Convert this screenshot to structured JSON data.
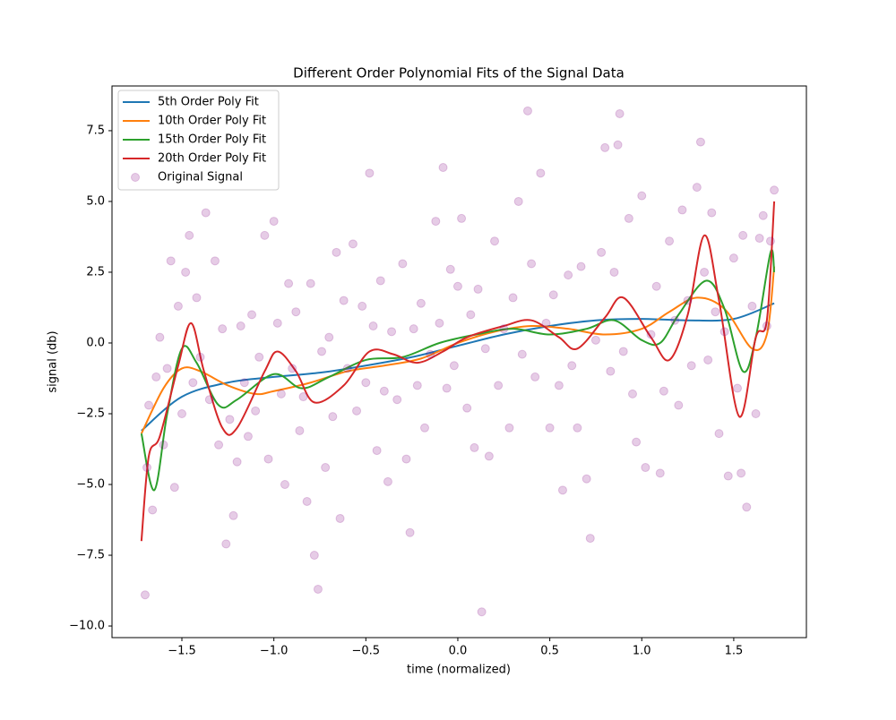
{
  "chart_data": {
    "type": "line",
    "title": "Different Order Polynomial Fits of the Signal Data",
    "xlabel": "time (normalized)",
    "ylabel": "signal (db)",
    "xlim": [
      -1.88,
      1.895
    ],
    "ylim": [
      -10.41,
      9.08
    ],
    "xticks": [
      {
        "value": -1.5,
        "label": "−1.5"
      },
      {
        "value": -1.0,
        "label": "−1.0"
      },
      {
        "value": -0.5,
        "label": "−0.5"
      },
      {
        "value": 0.0,
        "label": "0.0"
      },
      {
        "value": 0.5,
        "label": "0.5"
      },
      {
        "value": 1.0,
        "label": "1.0"
      },
      {
        "value": 1.5,
        "label": "1.5"
      }
    ],
    "yticks": [
      {
        "value": -10.0,
        "label": "−10.0"
      },
      {
        "value": -7.5,
        "label": "−7.5"
      },
      {
        "value": -5.0,
        "label": "−5.0"
      },
      {
        "value": -2.5,
        "label": "−2.5"
      },
      {
        "value": 0.0,
        "label": "0.0"
      },
      2.5,
      {
        "value": 5.0,
        "label": "5.0"
      },
      7.5
    ],
    "legend": "upper left",
    "series": [
      {
        "name": "5th Order Poly Fit",
        "type": "line",
        "color": "#1f77b4",
        "x": [
          -1.72,
          -1.5,
          -1.25,
          -1.0,
          -0.75,
          -0.5,
          -0.25,
          0.0,
          0.25,
          0.5,
          0.75,
          1.0,
          1.25,
          1.5,
          1.72
        ],
        "values": [
          -3.1,
          -1.9,
          -1.4,
          -1.2,
          -1.05,
          -0.8,
          -0.5,
          -0.1,
          0.3,
          0.6,
          0.8,
          0.85,
          0.8,
          0.85,
          1.4
        ]
      },
      {
        "name": "10th Order Poly Fit",
        "type": "line",
        "color": "#ff7f0e",
        "x": [
          -1.72,
          -1.6,
          -1.5,
          -1.4,
          -1.25,
          -1.1,
          -1.0,
          -0.8,
          -0.6,
          -0.4,
          -0.2,
          0.0,
          0.2,
          0.4,
          0.6,
          0.8,
          1.0,
          1.15,
          1.3,
          1.45,
          1.6,
          1.68,
          1.72
        ],
        "values": [
          -3.2,
          -1.6,
          -0.9,
          -1.0,
          -1.5,
          -1.8,
          -1.7,
          -1.4,
          -1.0,
          -0.8,
          -0.55,
          0.0,
          0.4,
          0.6,
          0.5,
          0.3,
          0.5,
          1.1,
          1.6,
          1.2,
          -0.2,
          0.3,
          2.7
        ]
      },
      {
        "name": "15th Order Poly Fit",
        "type": "line",
        "color": "#2ca02c",
        "x": [
          -1.72,
          -1.65,
          -1.58,
          -1.5,
          -1.42,
          -1.3,
          -1.2,
          -1.0,
          -0.85,
          -0.7,
          -0.5,
          -0.3,
          -0.1,
          0.1,
          0.3,
          0.5,
          0.7,
          0.85,
          1.0,
          1.1,
          1.2,
          1.35,
          1.45,
          1.55,
          1.62,
          1.7,
          1.72
        ],
        "values": [
          -3.2,
          -5.2,
          -2.5,
          -0.2,
          -0.7,
          -2.2,
          -2.0,
          -1.1,
          -1.6,
          -1.2,
          -0.6,
          -0.5,
          0.0,
          0.3,
          0.5,
          0.3,
          0.5,
          0.8,
          0.1,
          0.0,
          1.0,
          2.2,
          1.2,
          -1.0,
          0.2,
          3.2,
          2.5
        ]
      },
      {
        "name": "20th Order Poly Fit",
        "type": "line",
        "color": "#d62728",
        "x": [
          -1.72,
          -1.68,
          -1.62,
          -1.52,
          -1.45,
          -1.38,
          -1.28,
          -1.2,
          -1.05,
          -0.98,
          -0.88,
          -0.78,
          -0.62,
          -0.48,
          -0.35,
          -0.22,
          -0.08,
          0.05,
          0.25,
          0.4,
          0.55,
          0.65,
          0.8,
          0.9,
          1.05,
          1.15,
          1.25,
          1.34,
          1.42,
          1.53,
          1.62,
          1.68,
          1.72
        ],
        "values": [
          -7.0,
          -4.0,
          -3.3,
          -0.8,
          0.7,
          -1.0,
          -3.0,
          -3.0,
          -1.0,
          -0.3,
          -1.0,
          -2.1,
          -1.5,
          -0.3,
          -0.4,
          -0.7,
          -0.3,
          0.2,
          0.6,
          0.8,
          0.2,
          -0.2,
          0.9,
          1.6,
          0.2,
          -0.6,
          1.0,
          3.8,
          1.5,
          -2.6,
          0.2,
          0.8,
          5.0
        ]
      },
      {
        "name": "Original Signal",
        "type": "scatter",
        "color": "purple",
        "alpha": 0.2,
        "x": [
          -1.7,
          -1.69,
          -1.68,
          -1.66,
          -1.64,
          -1.62,
          -1.6,
          -1.58,
          -1.56,
          -1.54,
          -1.52,
          -1.5,
          -1.48,
          -1.46,
          -1.44,
          -1.42,
          -1.4,
          -1.37,
          -1.35,
          -1.32,
          -1.3,
          -1.28,
          -1.26,
          -1.24,
          -1.22,
          -1.2,
          -1.18,
          -1.16,
          -1.14,
          -1.12,
          -1.1,
          -1.08,
          -1.05,
          -1.03,
          -1.0,
          -0.98,
          -0.96,
          -0.94,
          -0.92,
          -0.9,
          -0.88,
          -0.86,
          -0.84,
          -0.82,
          -0.8,
          -0.78,
          -0.76,
          -0.74,
          -0.72,
          -0.7,
          -0.68,
          -0.66,
          -0.64,
          -0.62,
          -0.6,
          -0.57,
          -0.55,
          -0.52,
          -0.5,
          -0.48,
          -0.46,
          -0.44,
          -0.42,
          -0.4,
          -0.38,
          -0.36,
          -0.33,
          -0.3,
          -0.28,
          -0.26,
          -0.24,
          -0.22,
          -0.2,
          -0.18,
          -0.15,
          -0.12,
          -0.1,
          -0.08,
          -0.06,
          -0.04,
          -0.02,
          0.0,
          0.02,
          0.05,
          0.07,
          0.09,
          0.11,
          0.13,
          0.15,
          0.17,
          0.2,
          0.22,
          0.25,
          0.28,
          0.3,
          0.33,
          0.35,
          0.38,
          0.4,
          0.42,
          0.45,
          0.48,
          0.5,
          0.52,
          0.55,
          0.57,
          0.6,
          0.62,
          0.65,
          0.67,
          0.7,
          0.72,
          0.75,
          0.78,
          0.8,
          0.83,
          0.85,
          0.87,
          0.88,
          0.9,
          0.93,
          0.95,
          0.97,
          1.0,
          1.02,
          1.05,
          1.08,
          1.1,
          1.12,
          1.15,
          1.18,
          1.2,
          1.22,
          1.25,
          1.27,
          1.3,
          1.32,
          1.34,
          1.36,
          1.38,
          1.4,
          1.42,
          1.45,
          1.47,
          1.5,
          1.52,
          1.54,
          1.55,
          1.57,
          1.6,
          1.62,
          1.64,
          1.66,
          1.68,
          1.7,
          1.72
        ],
        "values": [
          -8.9,
          -4.4,
          -2.2,
          -5.9,
          -1.2,
          0.2,
          -3.6,
          -0.9,
          2.9,
          -5.1,
          1.3,
          -2.5,
          2.5,
          3.8,
          -1.4,
          1.6,
          -0.5,
          4.6,
          -2.0,
          2.9,
          -3.6,
          0.5,
          -7.1,
          -2.7,
          -6.1,
          -4.2,
          0.6,
          -1.4,
          -3.3,
          1.0,
          -2.4,
          -0.5,
          3.8,
          -4.1,
          4.3,
          0.7,
          -1.8,
          -5.0,
          2.1,
          -0.9,
          1.1,
          -3.1,
          -1.9,
          -5.6,
          2.1,
          -7.5,
          -8.7,
          -0.3,
          -4.4,
          0.2,
          -2.6,
          3.2,
          -6.2,
          1.5,
          -0.9,
          3.5,
          -2.4,
          1.3,
          -1.4,
          6.0,
          0.6,
          -3.8,
          2.2,
          -1.7,
          -4.9,
          0.4,
          -2.0,
          2.8,
          -4.1,
          -6.7,
          0.5,
          -1.5,
          1.4,
          -3.0,
          -0.4,
          4.3,
          0.7,
          6.2,
          -1.6,
          2.6,
          -0.8,
          2.0,
          4.4,
          -2.3,
          1.0,
          -3.7,
          1.9,
          -9.5,
          -0.2,
          -4.0,
          3.6,
          -1.5,
          0.5,
          -3.0,
          1.6,
          5.0,
          -0.4,
          8.2,
          2.8,
          -1.2,
          6.0,
          0.7,
          -3.0,
          1.7,
          -1.5,
          -5.2,
          2.4,
          -0.8,
          -3.0,
          2.7,
          -4.8,
          -6.9,
          0.1,
          3.2,
          6.9,
          -1.0,
          2.5,
          7.0,
          8.1,
          -0.3,
          4.4,
          -1.8,
          -3.5,
          5.2,
          -4.4,
          0.3,
          2.0,
          -4.6,
          -1.7,
          3.6,
          0.8,
          -2.2,
          4.7,
          1.5,
          -0.8,
          5.5,
          7.1,
          2.5,
          -0.6,
          4.6,
          1.1,
          -3.2,
          0.4,
          -4.7,
          3.0,
          -1.6,
          -4.6,
          3.8,
          -5.8,
          1.3,
          -2.5,
          3.7,
          4.5,
          0.6,
          3.6,
          5.4
        ]
      }
    ]
  }
}
